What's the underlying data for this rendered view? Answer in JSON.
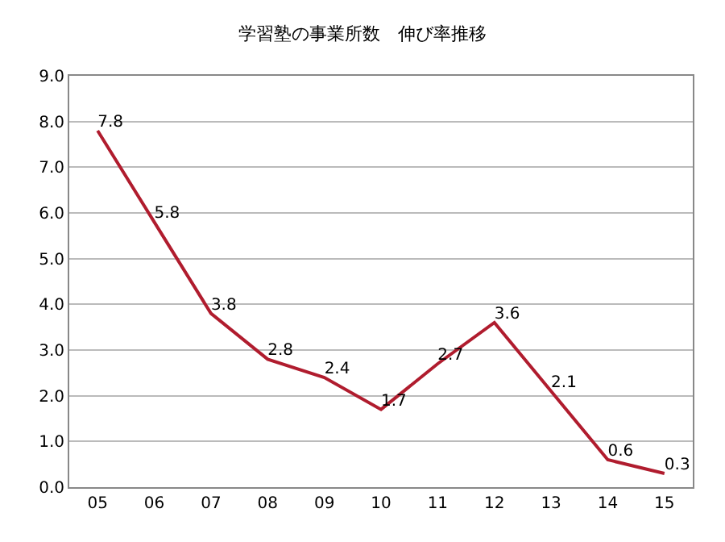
{
  "chart_data": {
    "type": "line",
    "title": "学習塾の事業所数　伸び率推移",
    "categories": [
      "05",
      "06",
      "07",
      "08",
      "09",
      "10",
      "11",
      "12",
      "13",
      "14",
      "15"
    ],
    "series": [
      {
        "color": "#b01c2e",
        "values": [
          7.8,
          5.8,
          3.8,
          2.8,
          2.4,
          1.7,
          2.7,
          3.6,
          2.1,
          0.6,
          0.3
        ]
      }
    ],
    "ylim": [
      0,
      9
    ],
    "yticks": [
      {
        "value": 0,
        "label": "0.0"
      },
      {
        "value": 1,
        "label": "1.0"
      },
      {
        "value": 2,
        "label": "2.0"
      },
      {
        "value": 3,
        "label": "3.0"
      },
      {
        "value": 4,
        "label": "4.0"
      },
      {
        "value": 5,
        "label": "5.0"
      },
      {
        "value": 6,
        "label": "6.0"
      },
      {
        "value": 7,
        "label": "7.0"
      },
      {
        "value": 8,
        "label": "8.0"
      },
      {
        "value": 9,
        "label": "9.0"
      }
    ],
    "grid": "y",
    "data_labels": true,
    "marker": "none",
    "line_style": "solid"
  }
}
